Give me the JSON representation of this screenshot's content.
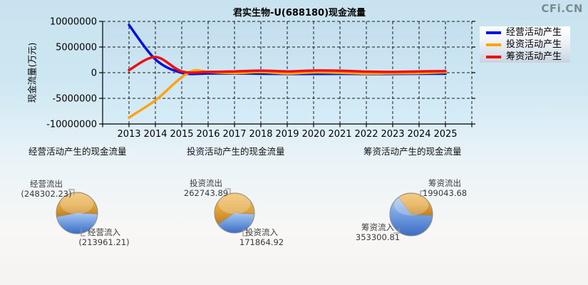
{
  "watermark": "CFi.CN",
  "title": "君实生物-U(688180)现金流量",
  "ylabel": "现金流量(万元)",
  "legend": {
    "items": [
      {
        "label": "经营活动产生",
        "color": "#0013dd"
      },
      {
        "label": "投资活动产生",
        "color": "#ffa30f"
      },
      {
        "label": "筹资活动产生",
        "color": "#ef0e11"
      }
    ]
  },
  "chart_data": [
    {
      "type": "line",
      "title": "君实生物-U(688180)现金流量",
      "xlabel": "",
      "ylabel": "现金流量(万元)",
      "xlim": [
        2012,
        2026
      ],
      "ylim": [
        -10000000,
        10000000
      ],
      "yticks": [
        10000000,
        5000000,
        0,
        -5000000,
        -10000000
      ],
      "xticks": [
        2013,
        2014,
        2015,
        2016,
        2017,
        2018,
        2019,
        2020,
        2021,
        2022,
        2023,
        2024,
        2025
      ],
      "grid": "dashed",
      "legend_position": "outside-right-top",
      "series": [
        {
          "key": "operating",
          "name": "经营活动产生",
          "color": "#0013dd",
          "points": [
            [
              2013,
              9300000
            ],
            [
              2014,
              2600000
            ],
            [
              2015,
              -30000
            ],
            [
              2016,
              -150000
            ],
            [
              2017,
              -150000
            ],
            [
              2018,
              -200000
            ],
            [
              2019,
              -250000
            ],
            [
              2020,
              -250000
            ],
            [
              2021,
              -220000
            ],
            [
              2022,
              -260000
            ],
            [
              2023,
              -250000
            ],
            [
              2024,
              -220000
            ],
            [
              2025,
              -200000
            ]
          ]
        },
        {
          "key": "investing",
          "name": "投资活动产生",
          "color": "#ffa30f",
          "points": [
            [
              2013,
              -8750000
            ],
            [
              2014,
              -5400000
            ],
            [
              2014.7,
              -2200000
            ],
            [
              2015.1,
              -500000
            ],
            [
              2015.5,
              450000
            ],
            [
              2016,
              150000
            ],
            [
              2017,
              -80000
            ],
            [
              2018,
              120000
            ],
            [
              2019,
              -150000
            ],
            [
              2020,
              60000
            ],
            [
              2021,
              -20000
            ],
            [
              2022,
              -180000
            ],
            [
              2023,
              -120000
            ],
            [
              2024,
              -80000
            ],
            [
              2025,
              80000
            ]
          ]
        },
        {
          "key": "financing",
          "name": "筹资活动产生",
          "color": "#ef0e11",
          "points": [
            [
              2013,
              500000
            ],
            [
              2014,
              3050000
            ],
            [
              2015,
              250000
            ],
            [
              2016,
              150000
            ],
            [
              2017,
              250000
            ],
            [
              2018,
              400000
            ],
            [
              2019,
              250000
            ],
            [
              2020,
              420000
            ],
            [
              2021,
              380000
            ],
            [
              2022,
              200000
            ],
            [
              2023,
              150000
            ],
            [
              2024,
              250000
            ],
            [
              2025,
              320000
            ]
          ]
        }
      ]
    },
    {
      "type": "pie",
      "title": "经营活动产生的现金流量",
      "slices": [
        {
          "label": "经营流出",
          "value": 248302.23,
          "display": "(248302.23)",
          "color": "orange"
        },
        {
          "label": "经营流入",
          "value": 213961.21,
          "display": "(213961.21)",
          "color": "blue"
        }
      ]
    },
    {
      "type": "pie",
      "title": "投资活动产生的现金流量",
      "slices": [
        {
          "label": "投资流出",
          "value": 262743.89,
          "display": "262743.89",
          "color": "orange"
        },
        {
          "label": "投资流入",
          "value": 171864.92,
          "display": "171864.92",
          "color": "blue"
        }
      ]
    },
    {
      "type": "pie",
      "title": "筹资活动产生的现金流量",
      "slices": [
        {
          "label": "筹资流出",
          "value": 199043.68,
          "display": "199043.68",
          "color": "orange"
        },
        {
          "label": "筹资流入",
          "value": 353300.81,
          "display": "353300.81",
          "color": "blue"
        }
      ]
    }
  ]
}
